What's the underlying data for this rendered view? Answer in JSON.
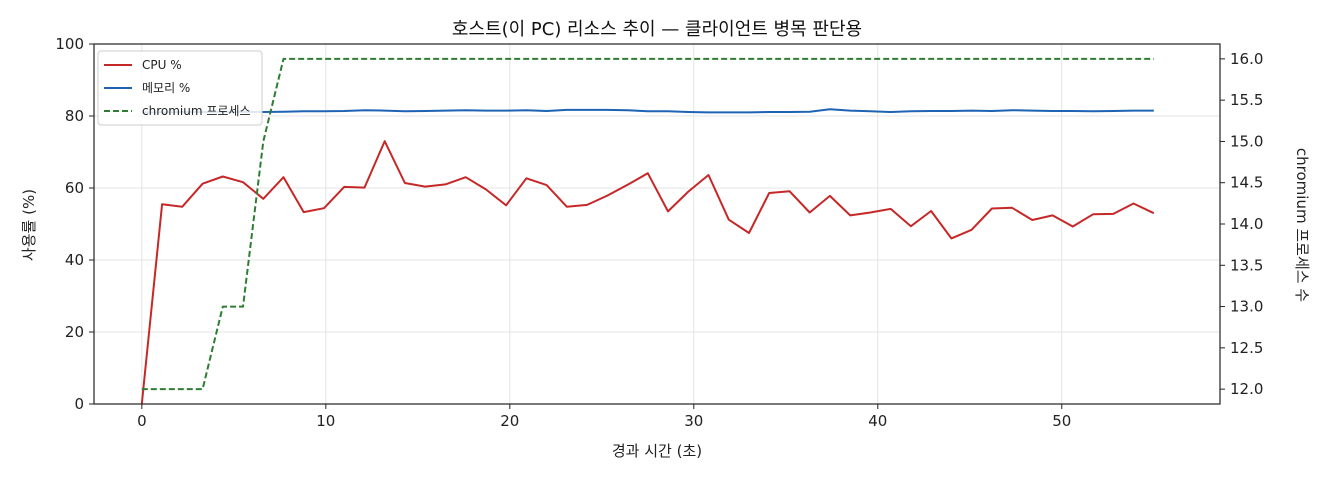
{
  "chart_data": {
    "type": "line",
    "title": "호스트(이 PC) 리소스 추이 — 클라이언트 병목 판단용",
    "xlabel": "경과 시간 (초)",
    "ylabel": "사용률 (%)",
    "ylabel_right": "chromium 프로세스 수",
    "xlim": [
      -2.6,
      58.6
    ],
    "ylim": [
      0,
      100
    ],
    "ylim_right": [
      11.82,
      16.18
    ],
    "xticks": [
      0,
      10,
      20,
      30,
      40,
      50
    ],
    "yticks": [
      0,
      20,
      40,
      60,
      80,
      100
    ],
    "yticks_right": [
      12.0,
      12.5,
      13.0,
      13.5,
      14.0,
      14.5,
      15.0,
      15.5,
      16.0
    ],
    "grid": true,
    "legend_position": "top-left",
    "series": [
      {
        "name": "CPU %",
        "axis": "left",
        "color": "#c62828",
        "style": "solid",
        "x": [
          0,
          1.1,
          2.2,
          3.3,
          4.4,
          5.5,
          6.6,
          7.7,
          8.8,
          9.9,
          11.0,
          12.1,
          13.2,
          14.3,
          15.4,
          16.5,
          17.6,
          18.7,
          19.8,
          20.9,
          22.0,
          23.1,
          24.2,
          25.3,
          26.4,
          27.5,
          28.6,
          29.7,
          30.8,
          31.9,
          33.0,
          34.1,
          35.2,
          36.3,
          37.4,
          38.5,
          39.6,
          40.7,
          41.8,
          42.9,
          44.0,
          45.1,
          46.2,
          47.3,
          48.4,
          49.5,
          50.6,
          51.7,
          52.8,
          53.9,
          55.0
        ],
        "y": [
          0,
          55.5,
          54.8,
          61.2,
          63.2,
          61.6,
          57.0,
          63.0,
          53.3,
          54.4,
          60.3,
          60.1,
          73.0,
          61.4,
          60.4,
          61.0,
          63.0,
          59.6,
          55.2,
          62.7,
          60.8,
          54.8,
          55.3,
          57.9,
          60.9,
          64.1,
          53.5,
          59.0,
          63.6,
          51.2,
          47.5,
          58.6,
          59.1,
          53.2,
          57.8,
          52.4,
          53.2,
          54.2,
          49.4,
          53.6,
          46.0,
          48.4,
          54.3,
          54.5,
          51.1,
          52.4,
          49.3,
          52.7,
          52.8,
          55.7,
          53.0
        ]
      },
      {
        "name": "메모리 %",
        "axis": "left",
        "color": "#1e63b4",
        "style": "solid",
        "x": [
          0,
          1.1,
          2.2,
          3.3,
          4.4,
          5.5,
          6.6,
          7.7,
          8.8,
          9.9,
          11.0,
          12.1,
          13.2,
          14.3,
          15.4,
          16.5,
          17.6,
          18.7,
          19.8,
          20.9,
          22.0,
          23.1,
          24.2,
          25.3,
          26.4,
          27.5,
          28.6,
          29.7,
          30.8,
          31.9,
          33.0,
          34.1,
          35.2,
          36.3,
          37.4,
          38.5,
          39.6,
          40.7,
          41.8,
          42.9,
          44.0,
          45.1,
          46.2,
          47.3,
          48.4,
          49.5,
          50.6,
          51.7,
          52.8,
          53.9,
          55.0
        ],
        "y": [
          81.0,
          81.0,
          81.1,
          81.1,
          81.1,
          81.2,
          81.1,
          81.2,
          81.3,
          81.3,
          81.4,
          81.6,
          81.5,
          81.3,
          81.4,
          81.5,
          81.6,
          81.5,
          81.5,
          81.6,
          81.4,
          81.7,
          81.7,
          81.7,
          81.6,
          81.3,
          81.3,
          81.1,
          81.0,
          81.0,
          81.0,
          81.1,
          81.1,
          81.2,
          81.9,
          81.5,
          81.3,
          81.1,
          81.3,
          81.4,
          81.4,
          81.5,
          81.4,
          81.6,
          81.5,
          81.4,
          81.4,
          81.3,
          81.4,
          81.5,
          81.5
        ]
      },
      {
        "name": "chromium 프로세스",
        "axis": "right",
        "color": "#2e7d32",
        "style": "dashed",
        "x": [
          0,
          1.1,
          2.2,
          3.3,
          4.4,
          5.5,
          6.6,
          7.7,
          8.8,
          9.9,
          11.0,
          12.1,
          13.2,
          14.3,
          15.4,
          16.5,
          17.6,
          18.7,
          19.8,
          20.9,
          22.0,
          23.1,
          24.2,
          25.3,
          26.4,
          27.5,
          28.6,
          29.7,
          30.8,
          31.9,
          33.0,
          34.1,
          35.2,
          36.3,
          37.4,
          38.5,
          39.6,
          40.7,
          41.8,
          42.9,
          44.0,
          45.1,
          46.2,
          47.3,
          48.4,
          49.5,
          50.6,
          51.7,
          52.8,
          53.9,
          55.0
        ],
        "y": [
          12,
          12,
          12,
          12,
          13,
          13,
          15,
          16,
          16,
          16,
          16,
          16,
          16,
          16,
          16,
          16,
          16,
          16,
          16,
          16,
          16,
          16,
          16,
          16,
          16,
          16,
          16,
          16,
          16,
          16,
          16,
          16,
          16,
          16,
          16,
          16,
          16,
          16,
          16,
          16,
          16,
          16,
          16,
          16,
          16,
          16,
          16,
          16,
          16,
          16,
          16
        ]
      }
    ]
  }
}
